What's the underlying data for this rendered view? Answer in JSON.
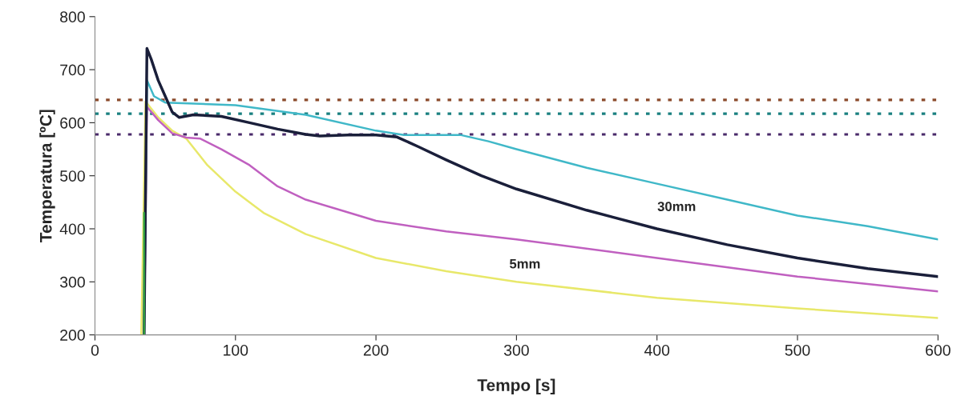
{
  "chart_data": {
    "type": "line",
    "xlabel": "Tempo [s]",
    "ylabel": "Temperatura [ºC]",
    "xlim": [
      0,
      600
    ],
    "ylim": [
      200,
      800
    ],
    "xticks": [
      0,
      100,
      200,
      300,
      400,
      500,
      600
    ],
    "yticks": [
      200,
      300,
      400,
      500,
      600,
      700,
      800
    ],
    "grid": false,
    "legend": false,
    "marker": "none",
    "line_style": "solid",
    "series": [
      {
        "color": "#e8e86a",
        "x": [
          33,
          36,
          45,
          55,
          65,
          80,
          100,
          120,
          150,
          200,
          250,
          300,
          400,
          500,
          600
        ],
        "values": [
          200,
          640,
          610,
          585,
          570,
          520,
          470,
          430,
          390,
          345,
          320,
          300,
          270,
          250,
          232
        ]
      },
      {
        "color": "#c060c0",
        "x": [
          35,
          37,
          45,
          55,
          65,
          75,
          90,
          110,
          130,
          150,
          175,
          200,
          250,
          300,
          400,
          500,
          600
        ],
        "values": [
          200,
          630,
          605,
          580,
          572,
          570,
          550,
          520,
          480,
          455,
          435,
          415,
          395,
          380,
          345,
          310,
          282
        ]
      },
      {
        "color": "#40b8c8",
        "x": [
          35,
          37,
          42,
          50,
          100,
          150,
          200,
          220,
          260,
          280,
          300,
          350,
          400,
          450,
          500,
          550,
          600
        ],
        "values": [
          200,
          680,
          650,
          638,
          633,
          615,
          585,
          577,
          577,
          565,
          550,
          515,
          485,
          455,
          425,
          405,
          380
        ]
      },
      {
        "color": "#1a1f3a",
        "x": [
          35,
          37,
          40,
          45,
          50,
          55,
          60,
          70,
          90,
          110,
          130,
          150,
          160,
          180,
          200,
          215,
          230,
          250,
          275,
          300,
          350,
          400,
          450,
          500,
          550,
          600
        ],
        "values": [
          200,
          740,
          720,
          680,
          650,
          620,
          610,
          615,
          612,
          600,
          588,
          578,
          575,
          577,
          577,
          573,
          555,
          530,
          500,
          475,
          435,
          400,
          370,
          345,
          325,
          310
        ]
      },
      {
        "color": "#2e9a40",
        "x": [
          35,
          35
        ],
        "values": [
          200,
          430
        ]
      }
    ],
    "ref_lines": [
      {
        "axis": "y",
        "value": 643,
        "color": "#8b4a2b",
        "line_style": "dotted"
      },
      {
        "axis": "y",
        "value": 617,
        "color": "#1a8080",
        "line_style": "dotted"
      },
      {
        "axis": "y",
        "value": 578,
        "color": "#4a2a6a",
        "line_style": "dotted"
      }
    ],
    "annotations": [
      "30mm",
      "5mm"
    ]
  }
}
